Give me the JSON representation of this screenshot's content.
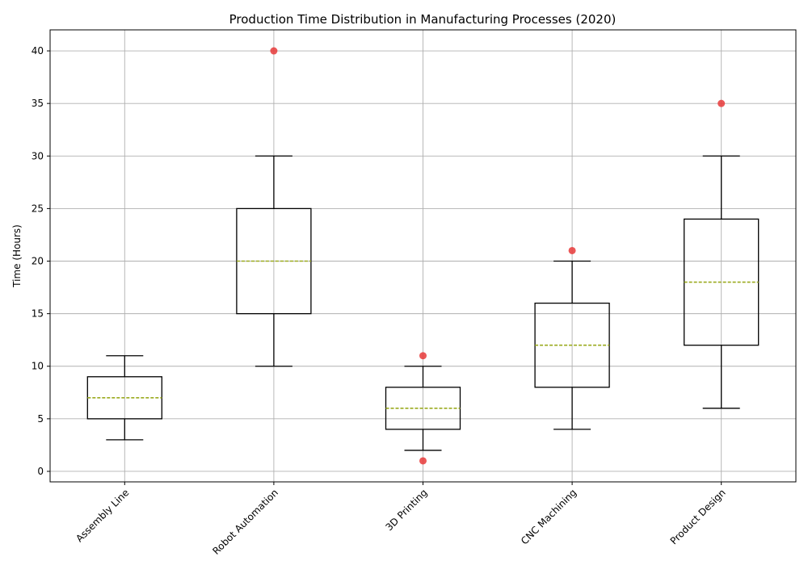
{
  "chart_data": {
    "type": "box",
    "title": "Production Time Distribution in Manufacturing Processes (2020)",
    "xlabel": "",
    "ylabel": "Time (Hours)",
    "ylim": [
      -1,
      42
    ],
    "yticks": [
      0,
      5,
      10,
      15,
      20,
      25,
      30,
      35,
      40
    ],
    "grid": true,
    "median_color": "#9aaa1e",
    "outlier_color": "#e8393a",
    "categories": [
      "Assembly Line",
      "Robot Automation",
      "3D Printing",
      "CNC Machining",
      "Product Design"
    ],
    "boxes": [
      {
        "min": 3,
        "q1": 5,
        "median": 7,
        "q3": 9,
        "max": 11,
        "outliers": []
      },
      {
        "min": 10,
        "q1": 15,
        "median": 20,
        "q3": 25,
        "max": 30,
        "outliers": [
          40
        ]
      },
      {
        "min": 2,
        "q1": 4,
        "median": 6,
        "q3": 8,
        "max": 10,
        "outliers": [
          1,
          11
        ]
      },
      {
        "min": 4,
        "q1": 8,
        "median": 12,
        "q3": 16,
        "max": 20,
        "outliers": [
          21
        ]
      },
      {
        "min": 6,
        "q1": 12,
        "median": 18,
        "q3": 24,
        "max": 30,
        "outliers": [
          35
        ]
      }
    ]
  }
}
